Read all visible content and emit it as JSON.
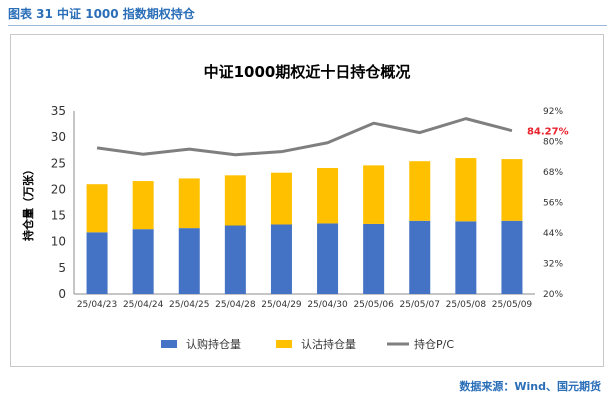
{
  "caption": "图表 31  中证 1000 指数期权持仓",
  "source": "数据来源：Wind、国元期货",
  "colors": {
    "call": "#4472c4",
    "put": "#ffc000",
    "pc": "#7f7f7f",
    "pc_label": "#e8202a",
    "caption": "#2a6eb8"
  },
  "chart_data": {
    "type": "bar",
    "stacked": true,
    "title": "中证1000期权近十日持仓概况",
    "ylabel": "持仓量（万张）",
    "ylim": [
      0,
      35
    ],
    "yticks": [
      "0",
      "5",
      "10",
      "15",
      "20",
      "25",
      "30",
      "35"
    ],
    "y2lim": [
      20,
      92
    ],
    "y2ticks": [
      "20%",
      "32%",
      "44%",
      "56%",
      "68%",
      "80%",
      "92%"
    ],
    "categories": [
      "25/04/23",
      "25/04/24",
      "25/04/25",
      "25/04/28",
      "25/04/29",
      "25/04/30",
      "25/05/06",
      "25/05/07",
      "25/05/08",
      "25/05/09"
    ],
    "series": [
      {
        "name": "认购持仓量",
        "type": "bar",
        "values": [
          11.8,
          12.4,
          12.6,
          13.1,
          13.3,
          13.5,
          13.4,
          14.0,
          13.9,
          14.0
        ]
      },
      {
        "name": "认沽持仓量",
        "type": "bar",
        "values": [
          9.2,
          9.2,
          9.5,
          9.6,
          9.9,
          10.6,
          11.2,
          11.4,
          12.1,
          11.8
        ]
      },
      {
        "name": "持仓P/C",
        "type": "line",
        "axis": "right",
        "values": [
          77.5,
          75.0,
          77.0,
          74.8,
          76.0,
          79.5,
          87.2,
          83.5,
          89.0,
          84.27
        ]
      }
    ],
    "last_label": "84.27%",
    "legend_position": "bottom",
    "grid": false
  }
}
